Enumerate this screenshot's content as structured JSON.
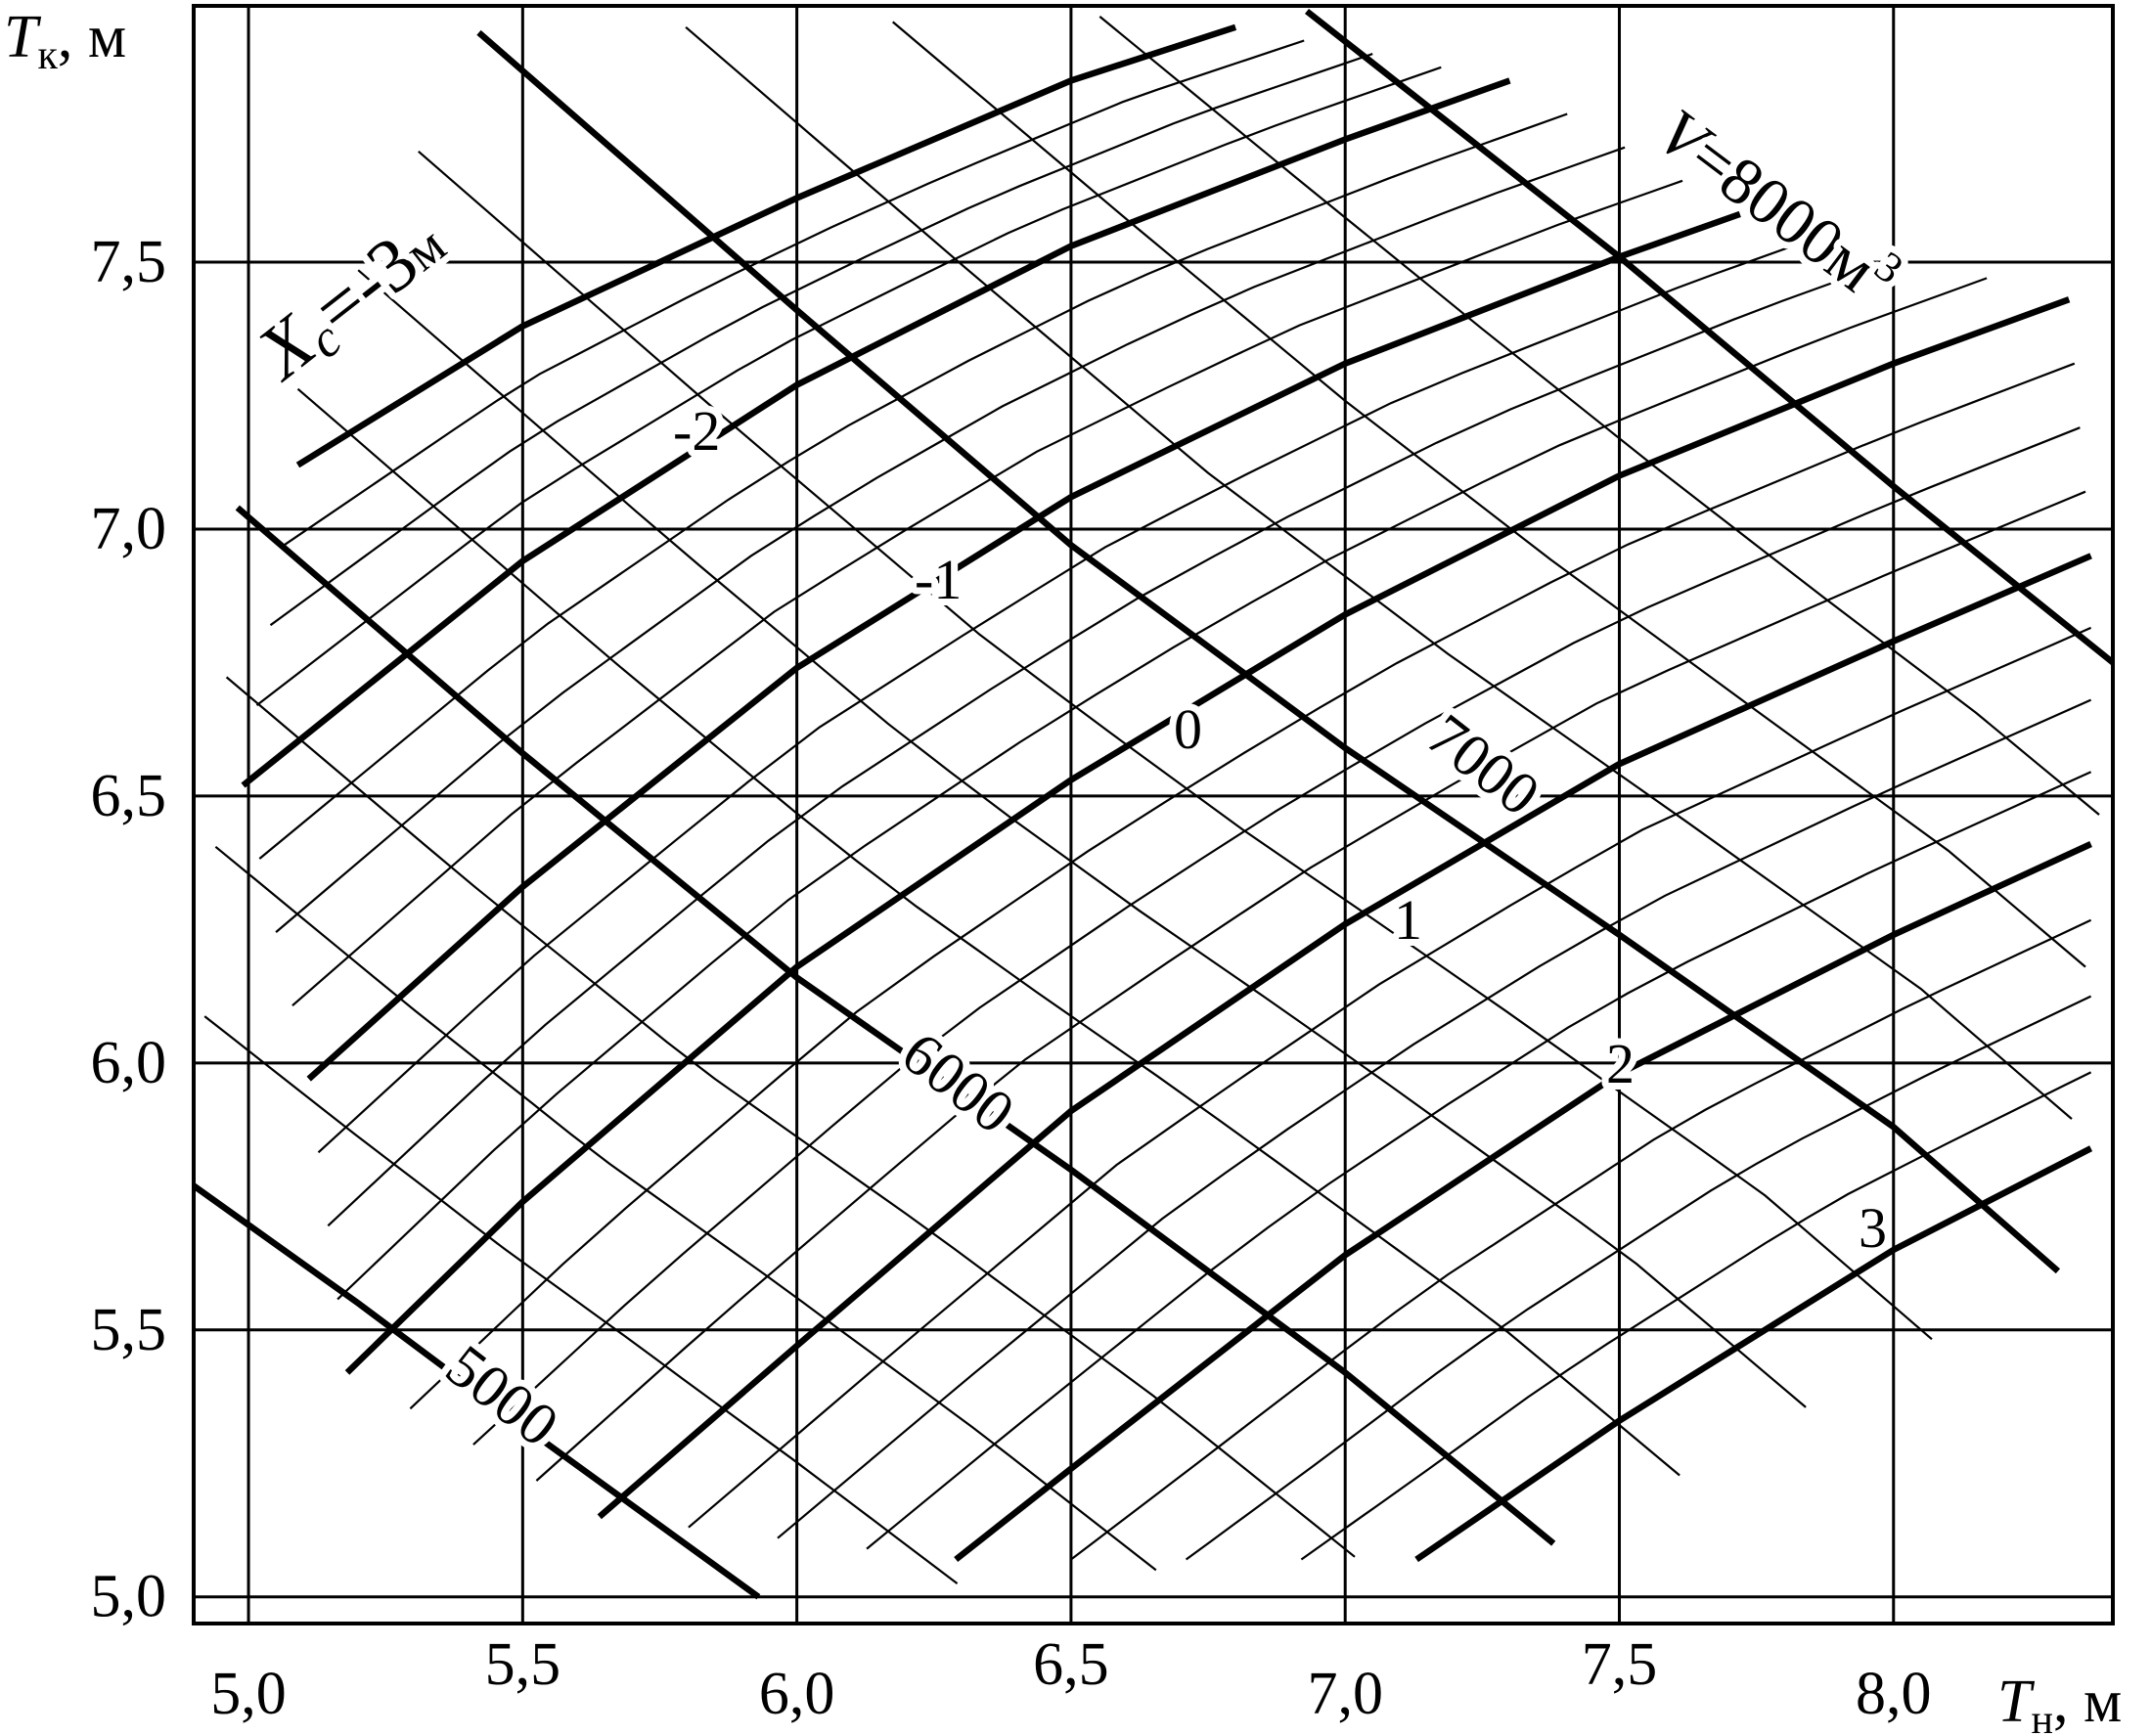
{
  "chart_data": {
    "type": "line",
    "title": "",
    "x_axis": {
      "label_symbol": "T",
      "label_sub": "н",
      "label_unit": ", м",
      "range": [
        4.9,
        8.4
      ],
      "ticks": [
        5.0,
        5.5,
        6.0,
        6.5,
        7.0,
        7.5,
        8.0
      ],
      "tick_labels": [
        "5,0",
        "5,5",
        "6,0",
        "6,5",
        "7,0",
        "7,5",
        "8,0"
      ]
    },
    "y_axis": {
      "label_symbol": "T",
      "label_sub": "к",
      "label_unit": ", м",
      "range": [
        4.95,
        7.98
      ],
      "ticks": [
        5.0,
        5.5,
        6.0,
        6.5,
        7.0,
        7.5
      ],
      "tick_labels": [
        "5,0",
        "5,5",
        "6,0",
        "6,5",
        "7,0",
        "7,5"
      ]
    },
    "grid": true,
    "families": [
      {
        "parameter": "Xc",
        "unit": "м",
        "minor_step": 0.25,
        "curves": [
          {
            "value": -3,
            "label": "Xc=-3м",
            "points": [
              [
                5.09,
                7.12
              ],
              [
                5.5,
                7.38
              ],
              [
                6.0,
                7.62
              ],
              [
                6.5,
                7.84
              ],
              [
                6.8,
                7.94
              ]
            ]
          },
          {
            "value": -2,
            "label": "-2",
            "points": [
              [
                4.99,
                6.52
              ],
              [
                5.5,
                6.94
              ],
              [
                6.0,
                7.27
              ],
              [
                6.5,
                7.53
              ],
              [
                7.0,
                7.73
              ],
              [
                7.3,
                7.84
              ]
            ]
          },
          {
            "value": -1,
            "label": "-1",
            "points": [
              [
                5.11,
                5.97
              ],
              [
                5.5,
                6.33
              ],
              [
                6.0,
                6.74
              ],
              [
                6.5,
                7.06
              ],
              [
                7.0,
                7.31
              ],
              [
                7.5,
                7.51
              ],
              [
                7.72,
                7.59
              ]
            ]
          },
          {
            "value": 0,
            "label": "0",
            "points": [
              [
                5.18,
                5.42
              ],
              [
                5.5,
                5.74
              ],
              [
                6.0,
                6.18
              ],
              [
                6.5,
                6.53
              ],
              [
                7.0,
                6.84
              ],
              [
                7.5,
                7.1
              ],
              [
                8.0,
                7.31
              ],
              [
                8.32,
                7.43
              ]
            ]
          },
          {
            "value": 1,
            "label": "1",
            "points": [
              [
                5.64,
                5.15
              ],
              [
                6.0,
                5.47
              ],
              [
                6.5,
                5.91
              ],
              [
                7.0,
                6.26
              ],
              [
                7.5,
                6.56
              ],
              [
                8.0,
                6.79
              ],
              [
                8.36,
                6.95
              ]
            ]
          },
          {
            "value": 2,
            "label": "2",
            "points": [
              [
                6.29,
                5.07
              ],
              [
                6.5,
                5.24
              ],
              [
                7.0,
                5.64
              ],
              [
                7.5,
                5.98
              ],
              [
                8.0,
                6.24
              ],
              [
                8.36,
                6.41
              ]
            ]
          },
          {
            "value": 3,
            "label": "3",
            "points": [
              [
                7.13,
                5.07
              ],
              [
                7.5,
                5.33
              ],
              [
                8.0,
                5.65
              ],
              [
                8.36,
                5.84
              ]
            ]
          }
        ]
      },
      {
        "parameter": "V",
        "unit": "м³",
        "minor_step": 250,
        "curves": [
          {
            "value": 5000,
            "label": "5000",
            "points": [
              [
                4.9,
                5.77
              ],
              [
                5.2,
                5.55
              ],
              [
                5.5,
                5.32
              ],
              [
                5.93,
                5.0
              ]
            ]
          },
          {
            "value": 6000,
            "label": "6000",
            "points": [
              [
                4.98,
                7.04
              ],
              [
                5.5,
                6.58
              ],
              [
                6.0,
                6.16
              ],
              [
                6.5,
                5.8
              ],
              [
                7.0,
                5.42
              ],
              [
                7.38,
                5.1
              ]
            ]
          },
          {
            "value": 7000,
            "label": "7000",
            "points": [
              [
                5.42,
                7.93
              ],
              [
                6.0,
                7.41
              ],
              [
                6.5,
                6.97
              ],
              [
                7.0,
                6.59
              ],
              [
                7.5,
                6.24
              ],
              [
                8.0,
                5.88
              ],
              [
                8.3,
                5.61
              ]
            ]
          },
          {
            "value": 8000,
            "label": "V=8000м³",
            "points": [
              [
                6.93,
                7.97
              ],
              [
                7.5,
                7.51
              ],
              [
                8.0,
                7.08
              ],
              [
                8.4,
                6.75
              ]
            ]
          }
        ]
      }
    ],
    "annotations": {
      "xc_main": {
        "symbol": "X",
        "sub": "c",
        "text": "=-3",
        "unit": "м"
      },
      "v_main": {
        "symbol": "V",
        "text": "=8000",
        "unit": "м",
        "sup": "3"
      }
    }
  }
}
